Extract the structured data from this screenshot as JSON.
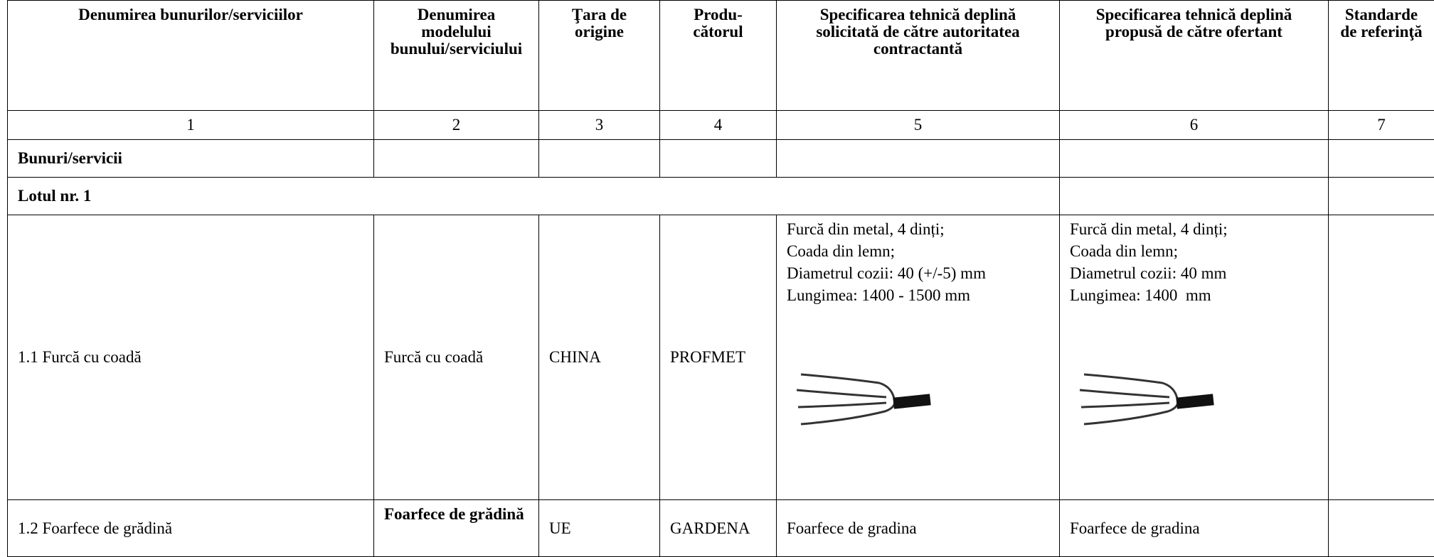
{
  "table": {
    "header": [
      "Denumirea bunurilor/serviciilor",
      "Denumirea modelului bunului/serviciului",
      "Ţara de origine",
      "Produ-cătorul",
      "Specificarea tehnică deplină solicitată de către autoritatea contractantă",
      "Specificarea tehnică deplină propusă de către ofertant",
      "Standarde de referinţă"
    ],
    "numbers": [
      "1",
      "2",
      "3",
      "4",
      "5",
      "6",
      "7"
    ],
    "section": "Bunuri/servicii",
    "lot": "Lotul nr. 1",
    "rows": [
      {
        "name": "1.1 Furcă cu coadă",
        "model": "Furcă cu coadă",
        "country": "CHINA",
        "producer": "PROFMET",
        "spec_requested": [
          "Furcă din metal, 4 dinți;",
          "Coada din lemn;",
          "Diametrul cozii: 40 (+/-5) mm",
          "Lungimea: 1400 - 1500 mm"
        ],
        "spec_offered": [
          "Furcă din metal, 4 dinți;",
          "Coada din lemn;",
          "Diametrul cozii: 40 mm",
          "Lungimea: 1400  mm"
        ]
      },
      {
        "name": "1.2 Foarfece de grădină",
        "model": "Foarfece de grădină",
        "country": "UE",
        "producer": "GARDENA",
        "spec_requested": [
          "Foarfece de gradina"
        ],
        "spec_offered": [
          "Foarfece de gradina"
        ]
      }
    ]
  }
}
